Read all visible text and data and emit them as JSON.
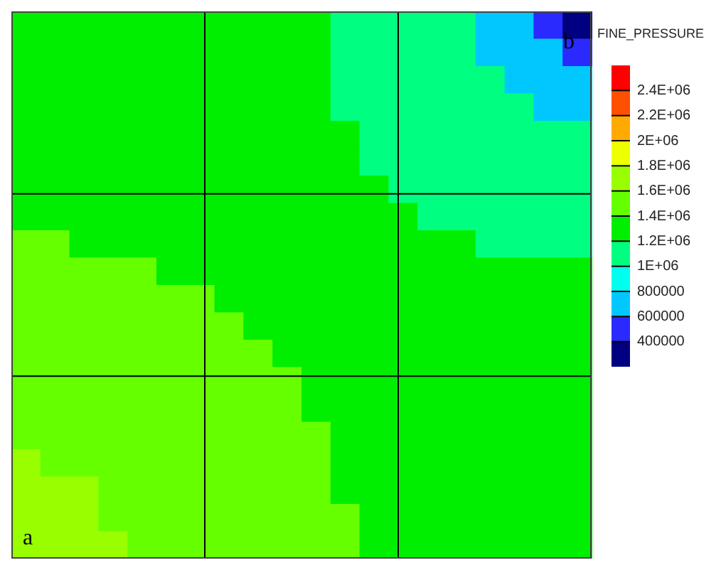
{
  "chart_data": {
    "type": "heatmap",
    "clabel": "FINE_PRESSURE",
    "categories": [
      null,
      null,
      null,
      null,
      null,
      null,
      null,
      null,
      null,
      null,
      null,
      null,
      null,
      null,
      null,
      null,
      null,
      null,
      null,
      null
    ],
    "y_categories": [
      null,
      null,
      null,
      null,
      null,
      null,
      null,
      null,
      null,
      null,
      null,
      null,
      null,
      null,
      null,
      null,
      null,
      null,
      null,
      null
    ],
    "clim": [
      200000,
      2600000
    ],
    "cticks": [
      {
        "value": 400000,
        "label": "400000"
      },
      {
        "value": 600000,
        "label": "600000"
      },
      {
        "value": 800000,
        "label": "800000"
      },
      {
        "value": 1000000,
        "label": "1E+06"
      },
      {
        "value": 1200000,
        "label": "1.2E+06"
      },
      {
        "value": 1400000,
        "label": "1.4E+06"
      },
      {
        "value": 1600000,
        "label": "1.6E+06"
      },
      {
        "value": 1800000,
        "label": "1.8E+06"
      },
      {
        "value": 2000000,
        "label": "2E+06"
      },
      {
        "value": 2200000,
        "label": "2.2E+06"
      },
      {
        "value": 2400000,
        "label": "2.4E+06"
      }
    ],
    "annotations": [
      "a",
      "b"
    ],
    "cells": [
      [
        1300000,
        1300000,
        1300000,
        1300000,
        1300000,
        1300000,
        1300000,
        1300000,
        1300000,
        1300000,
        1300000,
        1100000,
        1100000,
        1100000,
        1100000,
        1100000,
        700000,
        700000,
        500000,
        300000
      ],
      [
        1300000,
        1300000,
        1300000,
        1300000,
        1300000,
        1300000,
        1300000,
        1300000,
        1300000,
        1300000,
        1300000,
        1100000,
        1100000,
        1100000,
        1100000,
        1100000,
        700000,
        700000,
        700000,
        500000
      ],
      [
        1300000,
        1300000,
        1300000,
        1300000,
        1300000,
        1300000,
        1300000,
        1300000,
        1300000,
        1300000,
        1300000,
        1100000,
        1100000,
        1100000,
        1100000,
        1100000,
        1100000,
        700000,
        700000,
        700000
      ],
      [
        1300000,
        1300000,
        1300000,
        1300000,
        1300000,
        1300000,
        1300000,
        1300000,
        1300000,
        1300000,
        1300000,
        1100000,
        1100000,
        1100000,
        1100000,
        1100000,
        1100000,
        1100000,
        700000,
        700000
      ],
      [
        1300000,
        1300000,
        1300000,
        1300000,
        1300000,
        1300000,
        1300000,
        1300000,
        1300000,
        1300000,
        1300000,
        1300000,
        1100000,
        1100000,
        1100000,
        1100000,
        1100000,
        1100000,
        1100000,
        1100000
      ],
      [
        1300000,
        1300000,
        1300000,
        1300000,
        1300000,
        1300000,
        1300000,
        1300000,
        1300000,
        1300000,
        1300000,
        1300000,
        1100000,
        1100000,
        1100000,
        1100000,
        1100000,
        1100000,
        1100000,
        1100000
      ],
      [
        1300000,
        1300000,
        1300000,
        1300000,
        1300000,
        1300000,
        1300000,
        1300000,
        1300000,
        1300000,
        1300000,
        1300000,
        1300000,
        1100000,
        1100000,
        1100000,
        1100000,
        1100000,
        1100000,
        1100000
      ],
      [
        1300000,
        1300000,
        1300000,
        1300000,
        1300000,
        1300000,
        1300000,
        1300000,
        1300000,
        1300000,
        1300000,
        1300000,
        1300000,
        1300000,
        1100000,
        1100000,
        1100000,
        1100000,
        1100000,
        1100000
      ],
      [
        1500000,
        1500000,
        1300000,
        1300000,
        1300000,
        1300000,
        1300000,
        1300000,
        1300000,
        1300000,
        1300000,
        1300000,
        1300000,
        1300000,
        1300000,
        1300000,
        1100000,
        1100000,
        1100000,
        1100000
      ],
      [
        1500000,
        1500000,
        1500000,
        1500000,
        1500000,
        1300000,
        1300000,
        1300000,
        1300000,
        1300000,
        1300000,
        1300000,
        1300000,
        1300000,
        1300000,
        1300000,
        1300000,
        1300000,
        1300000,
        1300000
      ],
      [
        1500000,
        1500000,
        1500000,
        1500000,
        1500000,
        1500000,
        1500000,
        1300000,
        1300000,
        1300000,
        1300000,
        1300000,
        1300000,
        1300000,
        1300000,
        1300000,
        1300000,
        1300000,
        1300000,
        1300000
      ],
      [
        1500000,
        1500000,
        1500000,
        1500000,
        1500000,
        1500000,
        1500000,
        1500000,
        1300000,
        1300000,
        1300000,
        1300000,
        1300000,
        1300000,
        1300000,
        1300000,
        1300000,
        1300000,
        1300000,
        1300000
      ],
      [
        1500000,
        1500000,
        1500000,
        1500000,
        1500000,
        1500000,
        1500000,
        1500000,
        1500000,
        1300000,
        1300000,
        1300000,
        1300000,
        1300000,
        1300000,
        1300000,
        1300000,
        1300000,
        1300000,
        1300000
      ],
      [
        1500000,
        1500000,
        1500000,
        1500000,
        1500000,
        1500000,
        1500000,
        1500000,
        1500000,
        1500000,
        1300000,
        1300000,
        1300000,
        1300000,
        1300000,
        1300000,
        1300000,
        1300000,
        1300000,
        1300000
      ],
      [
        1500000,
        1500000,
        1500000,
        1500000,
        1500000,
        1500000,
        1500000,
        1500000,
        1500000,
        1500000,
        1300000,
        1300000,
        1300000,
        1300000,
        1300000,
        1300000,
        1300000,
        1300000,
        1300000,
        1300000
      ],
      [
        1500000,
        1500000,
        1500000,
        1500000,
        1500000,
        1500000,
        1500000,
        1500000,
        1500000,
        1500000,
        1500000,
        1300000,
        1300000,
        1300000,
        1300000,
        1300000,
        1300000,
        1300000,
        1300000,
        1300000
      ],
      [
        1700000,
        1500000,
        1500000,
        1500000,
        1500000,
        1500000,
        1500000,
        1500000,
        1500000,
        1500000,
        1500000,
        1300000,
        1300000,
        1300000,
        1300000,
        1300000,
        1300000,
        1300000,
        1300000,
        1300000
      ],
      [
        1700000,
        1700000,
        1700000,
        1500000,
        1500000,
        1500000,
        1500000,
        1500000,
        1500000,
        1500000,
        1500000,
        1300000,
        1300000,
        1300000,
        1300000,
        1300000,
        1300000,
        1300000,
        1300000,
        1300000
      ],
      [
        1700000,
        1700000,
        1700000,
        1500000,
        1500000,
        1500000,
        1500000,
        1500000,
        1500000,
        1500000,
        1500000,
        1500000,
        1300000,
        1300000,
        1300000,
        1300000,
        1300000,
        1300000,
        1300000,
        1300000
      ],
      [
        1700000,
        1700000,
        1700000,
        1700000,
        1500000,
        1500000,
        1500000,
        1500000,
        1500000,
        1500000,
        1500000,
        1500000,
        1300000,
        1300000,
        1300000,
        1300000,
        1300000,
        1300000,
        1300000,
        1300000
      ]
    ]
  }
}
